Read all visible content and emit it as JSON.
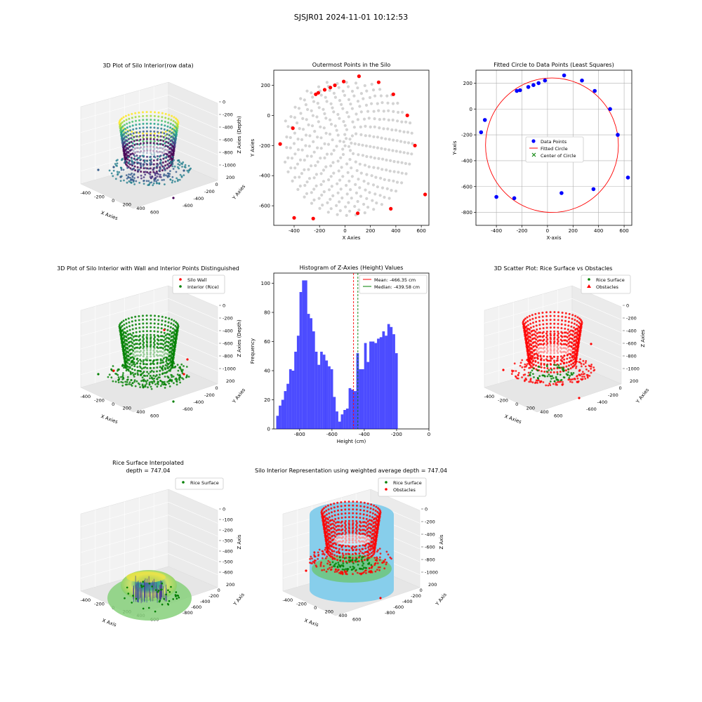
{
  "suptitle": "SJSJR01 2024-11-01 10:12:53",
  "chart_data": [
    {
      "id": "p1",
      "type": "scatter3d",
      "title": "3D Plot of Silo Interior(row data)",
      "xlabel": "X Axies",
      "ylabel": "Y Axies",
      "zlabel": "Z Axies (Depth)",
      "xticks": [
        "-400",
        "-200",
        "0",
        "200",
        "400",
        "600"
      ],
      "yticks": [
        "-600",
        "-400",
        "-200",
        "0",
        "200"
      ],
      "zticks": [
        "0",
        "-200",
        "-400",
        "-600",
        "-800",
        "-1000"
      ],
      "colormap": "viridis"
    },
    {
      "id": "p2",
      "type": "scatter",
      "title": "Outermost Points in the Silo",
      "xlabel": "X Axies",
      "ylabel": "Y Axies",
      "xlim": [
        -560,
        660
      ],
      "ylim": [
        -730,
        300
      ],
      "xticks": [
        -400,
        -200,
        0,
        200,
        400,
        600
      ],
      "yticks": [
        200,
        0,
        -200,
        -400,
        -600
      ],
      "interior_color": "#d3d3d3",
      "outer_color": "#ff0000",
      "outer_points": [
        [
          110,
          260
        ],
        [
          265,
          220
        ],
        [
          -10,
          225
        ],
        [
          -80,
          200
        ],
        [
          -115,
          185
        ],
        [
          -160,
          170
        ],
        [
          -210,
          150
        ],
        [
          -230,
          140
        ],
        [
          -410,
          -85
        ],
        [
          -510,
          -190
        ],
        [
          380,
          140
        ],
        [
          490,
          0
        ],
        [
          550,
          -200
        ],
        [
          630,
          -525
        ],
        [
          360,
          -620
        ],
        [
          100,
          -650
        ],
        [
          -250,
          -685
        ],
        [
          -400,
          -680
        ]
      ]
    },
    {
      "id": "p3",
      "type": "scatter+line",
      "title": "Fitted Circle to Data Points (Least Squares)",
      "xlabel": "X-axis",
      "ylabel": "Y-axis",
      "xlim": [
        -560,
        660
      ],
      "ylim": [
        -900,
        300
      ],
      "xticks": [
        -400,
        -200,
        0,
        200,
        400,
        600
      ],
      "yticks": [
        200,
        0,
        -200,
        -400,
        -600,
        -800
      ],
      "grid": true,
      "legend": [
        "Data Points",
        "Fitted Circle",
        "Center of Circle"
      ],
      "legend_loc": "center right",
      "data_points": [
        [
          -490,
          -85
        ],
        [
          -520,
          -180
        ],
        [
          -240,
          140
        ],
        [
          -215,
          145
        ],
        [
          -150,
          170
        ],
        [
          -110,
          185
        ],
        [
          -70,
          200
        ],
        [
          -20,
          220
        ],
        [
          130,
          260
        ],
        [
          270,
          220
        ],
        [
          370,
          140
        ],
        [
          490,
          0
        ],
        [
          550,
          -200
        ],
        [
          630,
          -530
        ],
        [
          360,
          -620
        ],
        [
          110,
          -650
        ],
        [
          -260,
          -690
        ],
        [
          -400,
          -680
        ]
      ],
      "circle": {
        "cx": 35,
        "cy": -280,
        "r": 520
      },
      "colors": {
        "points": "#0000ff",
        "circle": "#ff0000",
        "center": "#008000"
      }
    },
    {
      "id": "p4",
      "type": "scatter3d",
      "title": "3D Plot of Silo Interior with Wall and Interior Points Distinguished",
      "xlabel": "X Axies",
      "ylabel": "Y Axies",
      "zlabel": "Z Axies (Depth)",
      "xticks": [
        "-400",
        "-200",
        "0",
        "200",
        "400",
        "600"
      ],
      "yticks": [
        "-600",
        "-400",
        "-200",
        "0",
        "200"
      ],
      "zticks": [
        "0",
        "-200",
        "-400",
        "-600",
        "-800",
        "-1000"
      ],
      "legend": [
        "Silo Wall",
        "Interior (Rice)"
      ],
      "colors": {
        "wall": "#ff0000",
        "interior": "#008000"
      }
    },
    {
      "id": "p5",
      "type": "histogram",
      "title": "Histogram of Z-Axies (Height) Values",
      "xlabel": "Height (cm)",
      "ylabel": "Frequency",
      "xlim": [
        -960,
        0
      ],
      "ylim": [
        0,
        107
      ],
      "xticks": [
        -800,
        -600,
        -400,
        -200,
        0
      ],
      "yticks": [
        0,
        20,
        40,
        60,
        80,
        100
      ],
      "bin_start": -945,
      "bin_width": 16,
      "counts": [
        9,
        16,
        20,
        26,
        31,
        41,
        40,
        53,
        64,
        94,
        102,
        102,
        79,
        76,
        67,
        53,
        44,
        53,
        51,
        47,
        43,
        41,
        22,
        12,
        5,
        10,
        13,
        14,
        28,
        27,
        26,
        52,
        41,
        41,
        59,
        46,
        60,
        60,
        59,
        62,
        63,
        67,
        64,
        72,
        70,
        65,
        52
      ],
      "mean": -466.35,
      "median": -439.58,
      "legend": [
        "Mean: -466.35 cm",
        "Median: -439.58 cm"
      ],
      "colors": {
        "bars": "#0000ff",
        "mean": "#ff0000",
        "median": "#008000"
      }
    },
    {
      "id": "p6",
      "type": "scatter3d",
      "title": "3D Scatter Plot: Rice Surface vs Obstacles",
      "xlabel": "X Axies",
      "ylabel": "Y Axies",
      "zlabel": "Z Axies",
      "xticks": [
        "-400",
        "-200",
        "0",
        "200",
        "400",
        "600"
      ],
      "yticks": [
        "-600",
        "-400",
        "-200",
        "0",
        "200"
      ],
      "zticks": [
        "0",
        "-200",
        "-400",
        "-600",
        "-800",
        "-1000"
      ],
      "legend": [
        "Rice Surface",
        "Obstacles"
      ],
      "colors": {
        "rice": "#008000",
        "obstacles": "#ff0000"
      }
    },
    {
      "id": "p7",
      "type": "surface3d",
      "title": "Rice Surface Interpolated",
      "subtitle": "depth = 747.04",
      "xlabel": "X Axis",
      "ylabel": "Y Axis",
      "zlabel": "Z Axis",
      "xticks": [
        "-400",
        "-200",
        "0",
        "200",
        "400",
        "600"
      ],
      "yticks": [
        "-800",
        "-600",
        "-400",
        "-200",
        "0",
        "200"
      ],
      "zticks": [
        "0",
        "-100",
        "-200",
        "-300",
        "-400",
        "-500",
        "-600"
      ],
      "legend": [
        "Rice Surface"
      ]
    },
    {
      "id": "p8",
      "type": "scatter3d+cylinder",
      "title": "Silo Interior Representation using weighted average depth = 747.04",
      "xlabel": "X Axis",
      "ylabel": "Y Axis",
      "zlabel": "Z Axis",
      "xticks": [
        "-400",
        "-200",
        "0",
        "200",
        "400",
        "600"
      ],
      "yticks": [
        "-800",
        "-600",
        "-400",
        "-200",
        "0",
        "200"
      ],
      "zticks": [
        "0",
        "-200",
        "-400",
        "-600",
        "-800",
        "-1000"
      ],
      "legend": [
        "Rice Surface",
        "Obstacles"
      ],
      "colors": {
        "cylinder": "#87ceeb",
        "rice": "#008000",
        "obstacles": "#ff0000"
      }
    }
  ]
}
